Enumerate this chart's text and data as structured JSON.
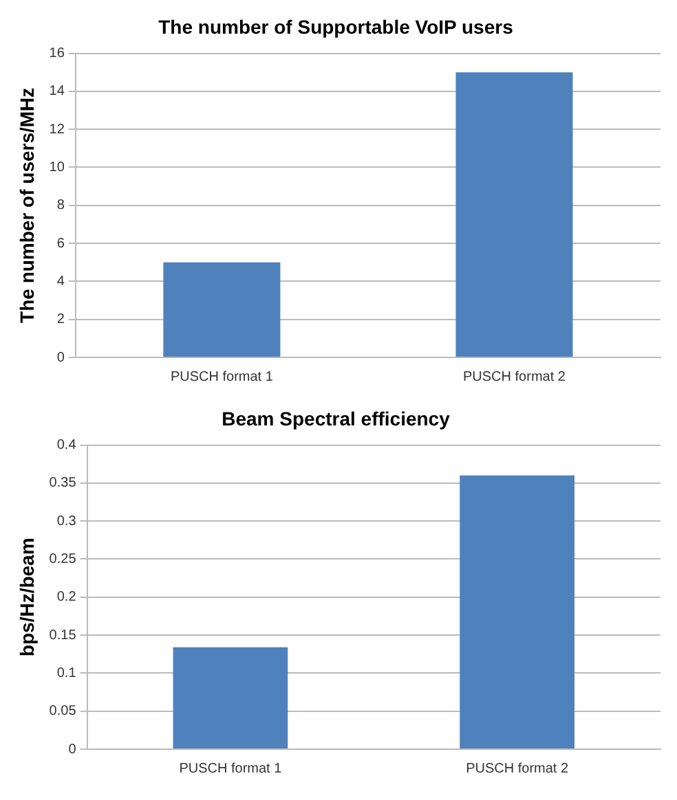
{
  "chart_data": [
    {
      "type": "bar",
      "title": "The number of Supportable VoIP users",
      "ylabel": "The number of users/MHz",
      "categories": [
        "PUSCH format 1",
        "PUSCH format 2"
      ],
      "values": [
        5,
        15
      ],
      "color": "#4f81bd",
      "ylim": [
        0,
        16
      ],
      "yticks": [
        0,
        2,
        4,
        6,
        8,
        10,
        12,
        14,
        16
      ],
      "grid": "y",
      "legend": false
    },
    {
      "type": "bar",
      "title": "Beam Spectral efficiency",
      "ylabel": "bps/Hz/beam",
      "categories": [
        "PUSCH format 1",
        "PUSCH format 2"
      ],
      "values": [
        0.134,
        0.36
      ],
      "color": "#4f81bd",
      "ylim": [
        0,
        0.4
      ],
      "yticks": [
        0,
        0.05,
        0.1,
        0.15,
        0.2,
        0.25,
        0.3,
        0.35,
        0.4
      ],
      "grid": "y",
      "legend": false
    }
  ]
}
